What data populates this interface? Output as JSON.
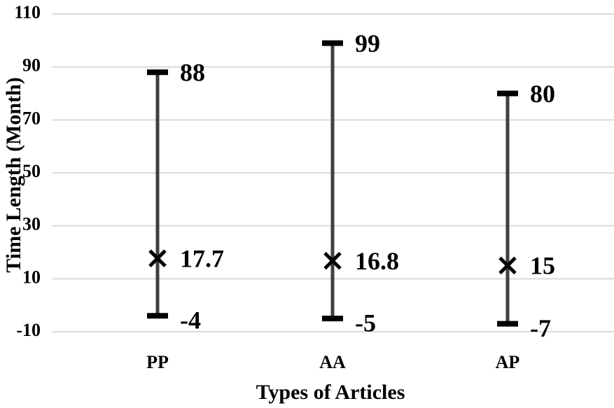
{
  "chart_data": {
    "type": "high-low-mean",
    "x_label": "Types of Articles",
    "y_label": "Time Length (Month)",
    "categories": [
      "PP",
      "AA",
      "AP"
    ],
    "max": [
      88,
      99,
      80
    ],
    "min": [
      -4,
      -5,
      -7
    ],
    "mean": [
      17.7,
      16.8,
      15
    ],
    "color": "#404040",
    "ylim": [
      -10,
      110
    ],
    "yticks": [
      -10,
      10,
      30,
      50,
      70,
      90,
      110
    ],
    "grid": true
  }
}
